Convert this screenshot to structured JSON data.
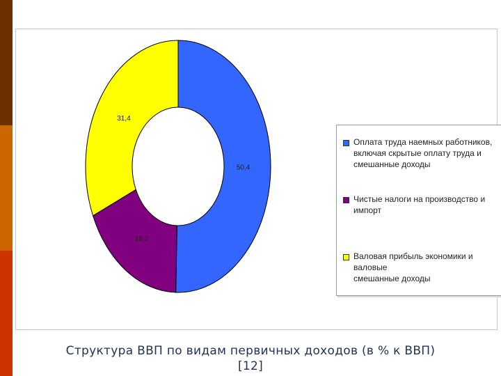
{
  "caption": {
    "line1": "Структура ВВП по видам первичных доходов (в % к ВВП)",
    "line2": "[12]"
  },
  "chart_data": {
    "type": "pie",
    "variant": "donut",
    "title": "",
    "legend_position": "right",
    "series": [
      {
        "name": "Оплата труда наемных работников, включая скрытые оплату труда и смешанные доходы",
        "value": 50.4,
        "label": "50,4",
        "color": "#3366ff"
      },
      {
        "name": "Чистые налоги на производство и импорт",
        "value": 18.2,
        "label": "18,2",
        "color": "#800080"
      },
      {
        "name": "Валовая прибыль экономики и валовые смешанные доходы",
        "value": 31.4,
        "label": "31,4",
        "color": "#ffff00"
      }
    ]
  },
  "legend": {
    "items": [
      {
        "lines": [
          "Оплата труда наемных работников,",
          "включая скрытые оплату труда и",
          "смешанные доходы"
        ]
      },
      {
        "lines": [
          "Чистые налоги на производство и импорт"
        ]
      },
      {
        "lines": [
          "Валовая прибыль экономики и валовые",
          "смешанные доходы"
        ]
      }
    ]
  },
  "theme": {
    "side_bar_colors": [
      "#6b3200",
      "#cc6600",
      "#cc3300"
    ]
  }
}
